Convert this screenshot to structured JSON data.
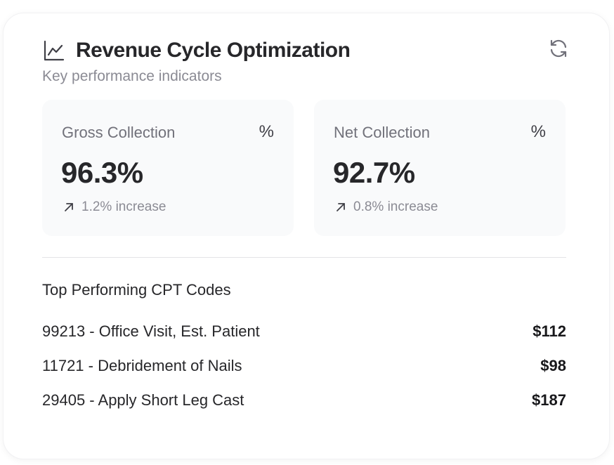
{
  "header": {
    "title": "Revenue Cycle Optimization",
    "subtitle": "Key performance indicators",
    "icon": "line-chart-icon",
    "action_icon": "refresh-icon"
  },
  "kpis": [
    {
      "label": "Gross Collection",
      "unit": "%",
      "value": "96.3%",
      "trend": "1.2% increase",
      "trend_icon": "arrow-up-right-icon"
    },
    {
      "label": "Net Collection",
      "unit": "%",
      "value": "92.7%",
      "trend": "0.8% increase",
      "trend_icon": "arrow-up-right-icon"
    }
  ],
  "cpt": {
    "title": "Top Performing CPT Codes",
    "rows": [
      {
        "name": "99213 - Office Visit, Est. Patient",
        "amount": "$112"
      },
      {
        "name": "11721 - Debridement of Nails",
        "amount": "$98"
      },
      {
        "name": "29405 - Apply Short Leg Cast",
        "amount": "$187"
      }
    ]
  },
  "colors": {
    "text_primary": "#27272a",
    "text_muted": "#8b8b94",
    "panel_bg": "#f9fafb",
    "divider": "#e4e4e7"
  }
}
